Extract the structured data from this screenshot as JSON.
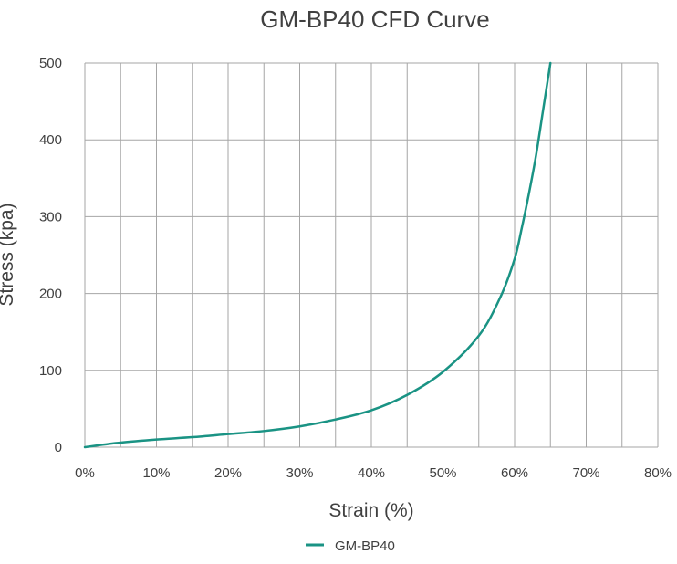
{
  "chart_data": {
    "type": "line",
    "title": "GM-BP40 CFD Curve",
    "xlabel": "Strain (%)",
    "ylabel": "Stress (kpa)",
    "xlim": [
      0,
      80
    ],
    "ylim": [
      0,
      500
    ],
    "x_ticks": [
      0,
      10,
      20,
      30,
      40,
      50,
      60,
      70,
      80
    ],
    "x_tick_labels": [
      "0%",
      "10%",
      "20%",
      "30%",
      "40%",
      "50%",
      "60%",
      "70%",
      "80%"
    ],
    "y_ticks": [
      0,
      100,
      200,
      300,
      400,
      500
    ],
    "y_tick_labels": [
      "0",
      "100",
      "200",
      "300",
      "400",
      "500"
    ],
    "grid": true,
    "legend_position": "bottom-center",
    "series": [
      {
        "name": "GM-BP40",
        "color": "#1a9384",
        "x": [
          0,
          5,
          10,
          15,
          20,
          25,
          30,
          35,
          40,
          45,
          50,
          55,
          58,
          60,
          61,
          62,
          63,
          64,
          65
        ],
        "y": [
          0,
          6,
          10,
          13,
          17,
          21,
          27,
          36,
          48,
          68,
          98,
          145,
          195,
          245,
          285,
          330,
          380,
          440,
          500
        ]
      }
    ]
  }
}
